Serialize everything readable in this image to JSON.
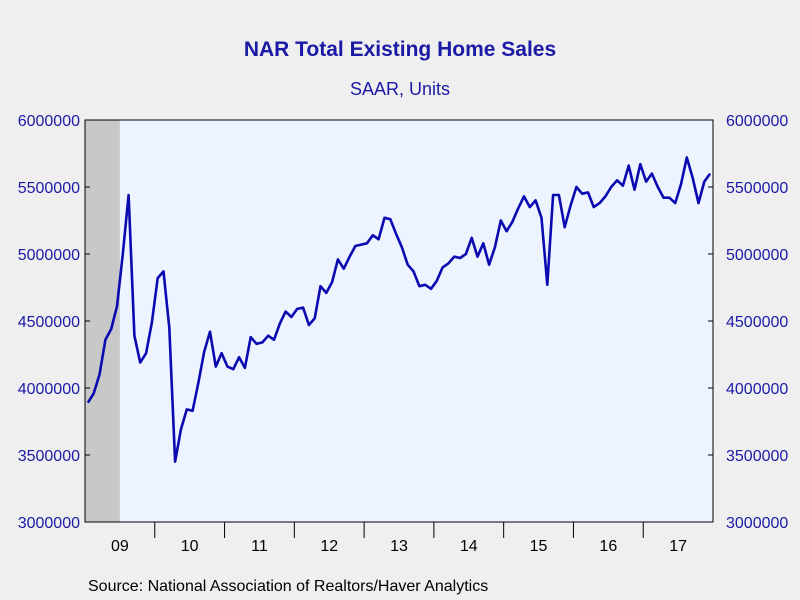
{
  "title": "NAR Total Existing Home Sales",
  "subtitle": "SAAR, Units",
  "source": "Source:  National Association of Realtors/Haver Analytics",
  "colors": {
    "line": "#0a0ab0",
    "plot_bg": "#eef4ff",
    "recession": "#c8c8c8",
    "text": "#1a1aa6"
  },
  "chart_data": {
    "type": "line",
    "title": "NAR Total Existing Home Sales",
    "subtitle": "SAAR, Units",
    "ylim": [
      3000000,
      6000000
    ],
    "yticks": [
      3000000,
      3500000,
      4000000,
      4500000,
      5000000,
      5500000,
      6000000
    ],
    "ytick_labels": [
      "3000000",
      "3500000",
      "4000000",
      "4500000",
      "5000000",
      "5500000",
      "6000000"
    ],
    "xtick_labels": [
      "09",
      "10",
      "11",
      "12",
      "13",
      "14",
      "15",
      "16",
      "17"
    ],
    "x_start": "2009-01",
    "x_end": "2017-12",
    "recession_shading": [
      "2009-01",
      "2009-06"
    ],
    "grid": false,
    "series": [
      {
        "values": [
          3890000,
          3960000,
          4100000,
          4360000,
          4440000,
          4610000,
          5000000,
          5440000,
          4390000,
          4190000,
          4260000,
          4490000,
          4820000,
          4870000,
          4450000,
          3450000,
          3690000,
          3840000,
          3830000,
          4040000,
          4270000,
          4420000,
          4160000,
          4260000,
          4160000,
          4140000,
          4230000,
          4150000,
          4380000,
          4330000,
          4340000,
          4390000,
          4360000,
          4480000,
          4570000,
          4530000,
          4590000,
          4600000,
          4470000,
          4520000,
          4760000,
          4710000,
          4790000,
          4960000,
          4890000,
          4980000,
          5060000,
          5070000,
          5080000,
          5140000,
          5110000,
          5270000,
          5260000,
          5150000,
          5050000,
          4920000,
          4870000,
          4760000,
          4770000,
          4740000,
          4800000,
          4900000,
          4930000,
          4980000,
          4970000,
          5000000,
          5120000,
          4980000,
          5080000,
          4920000,
          5050000,
          5250000,
          5170000,
          5240000,
          5340000,
          5430000,
          5350000,
          5400000,
          5270000,
          4770000,
          5440000,
          5440000,
          5200000,
          5360000,
          5500000,
          5450000,
          5460000,
          5350000,
          5380000,
          5430000,
          5500000,
          5550000,
          5510000,
          5660000,
          5480000,
          5670000,
          5540000,
          5600000,
          5500000,
          5420000,
          5420000,
          5380000,
          5520000,
          5720000,
          5570000,
          5380000,
          5540000,
          5600000
        ]
      }
    ]
  }
}
